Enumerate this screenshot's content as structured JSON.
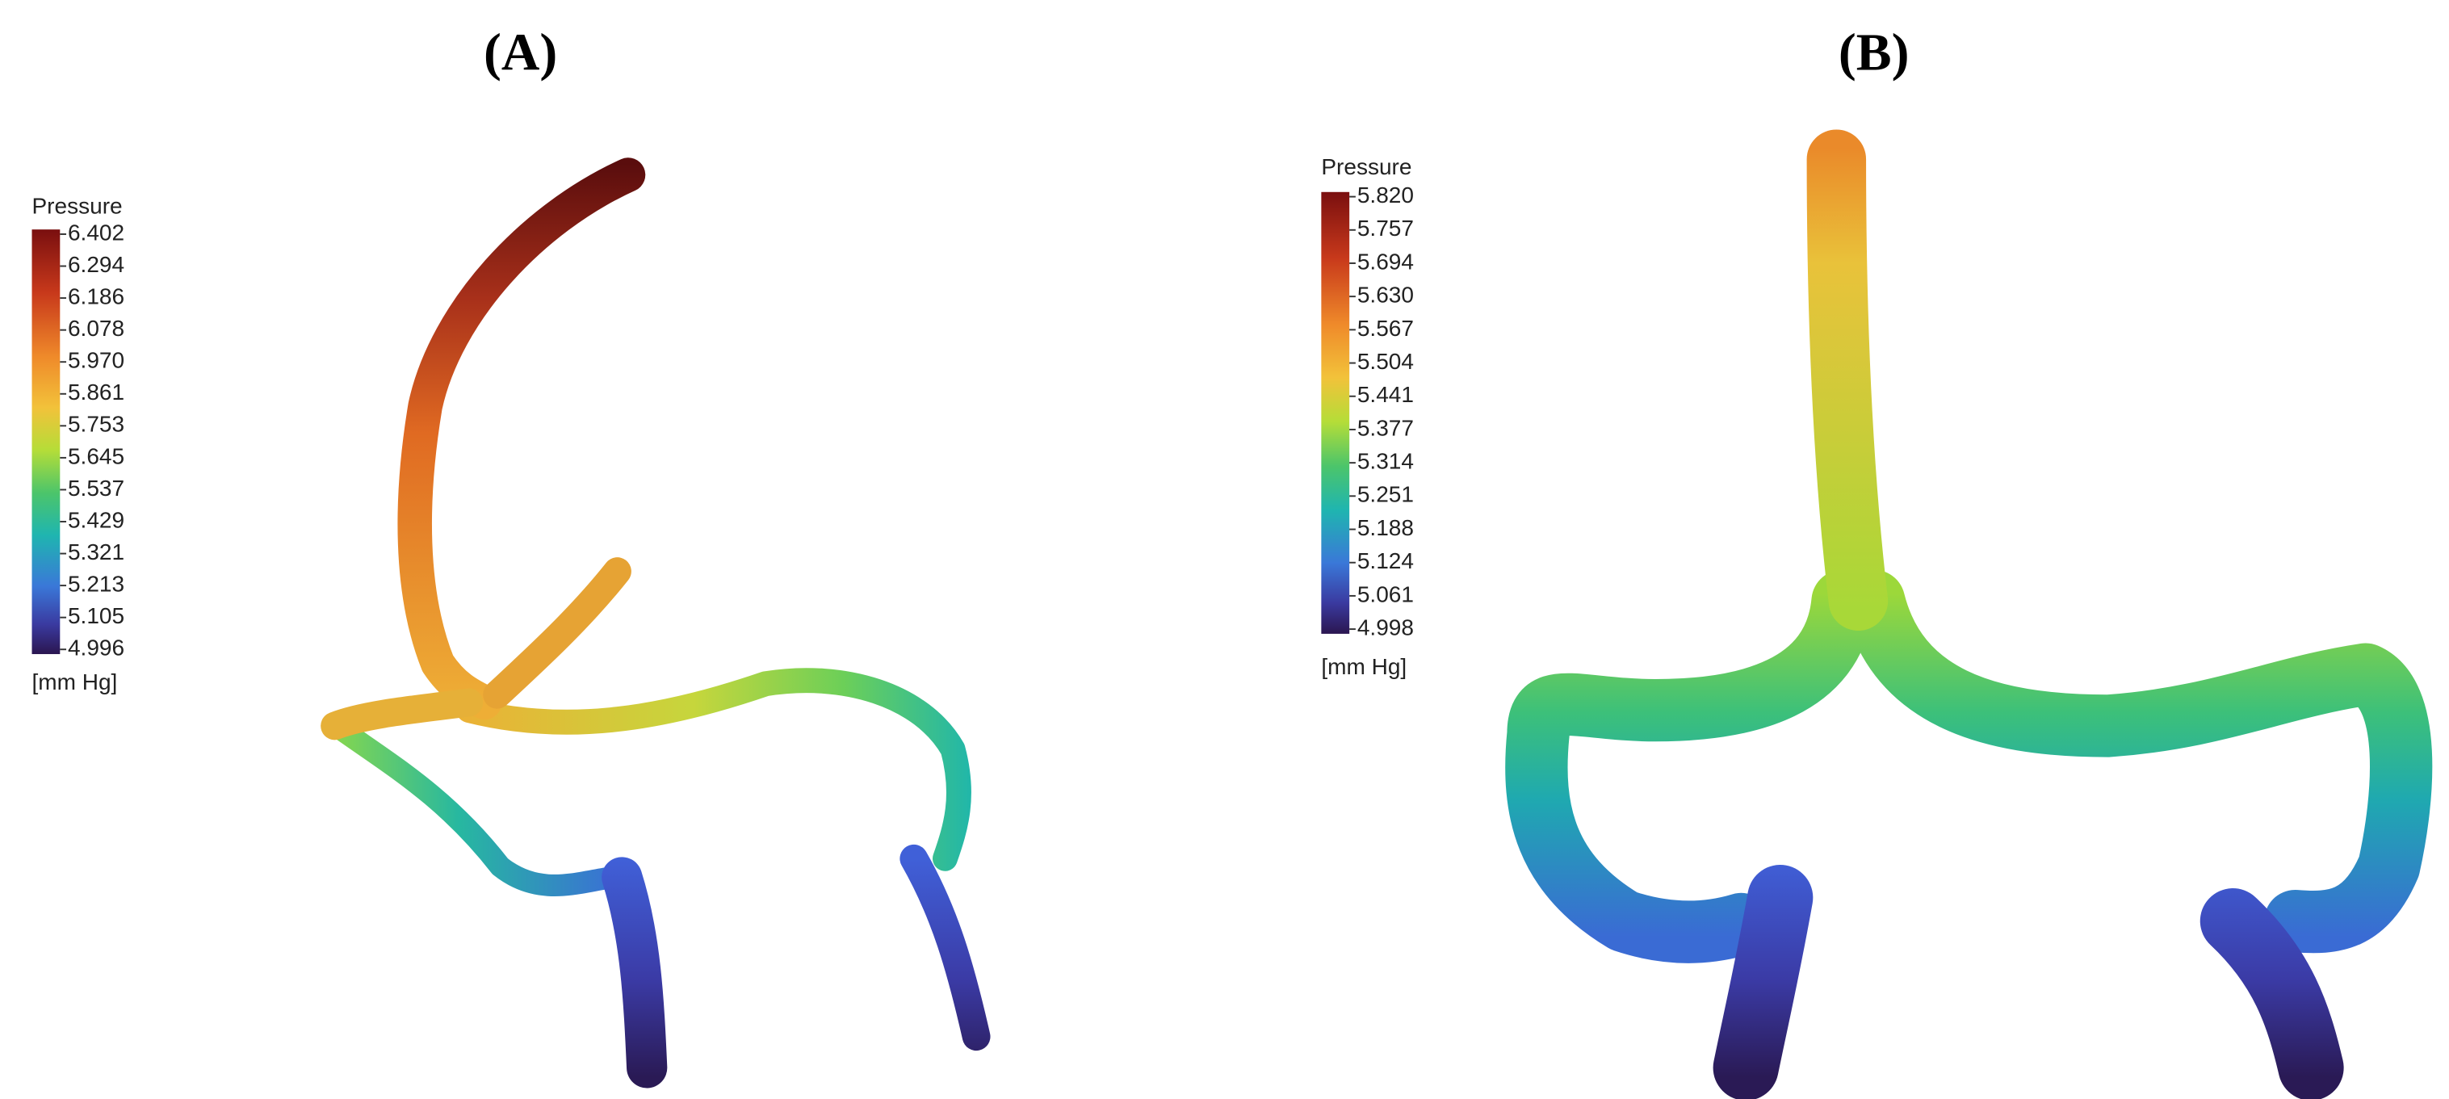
{
  "panels": [
    {
      "label": "(A)",
      "legend": {
        "title": "Pressure",
        "ticks": [
          "6.402",
          "6.294",
          "6.186",
          "6.078",
          "5.970",
          "5.861",
          "5.753",
          "5.645",
          "5.537",
          "5.429",
          "5.321",
          "5.213",
          "5.105",
          "4.996"
        ],
        "unit": "[mm Hg]"
      }
    },
    {
      "label": "(B)",
      "legend": {
        "title": "Pressure",
        "ticks": [
          "5.820",
          "5.757",
          "5.694",
          "5.630",
          "5.567",
          "5.504",
          "5.441",
          "5.377",
          "5.314",
          "5.251",
          "5.188",
          "5.124",
          "5.061",
          "4.998"
        ],
        "unit": "[mm Hg]"
      }
    }
  ]
}
